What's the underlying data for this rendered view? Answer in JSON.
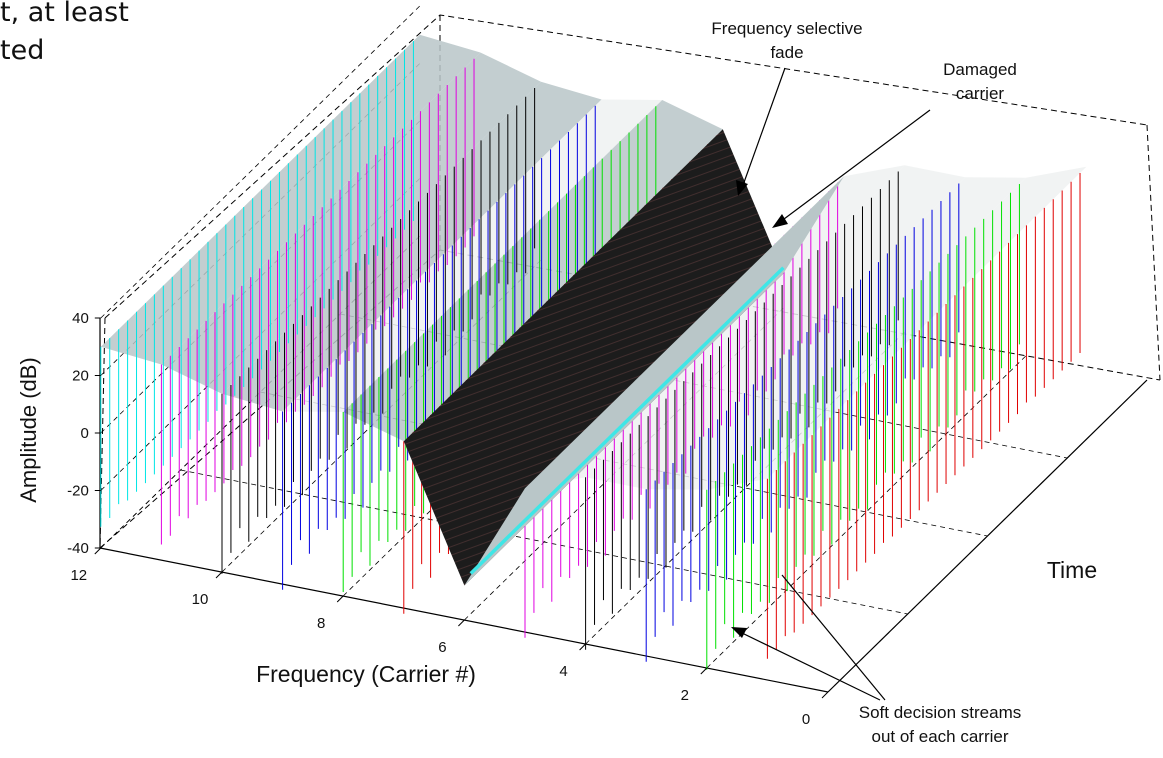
{
  "slide_caption": {
    "line1": "t, at least",
    "line2": "ted"
  },
  "chart_data": {
    "type": "3d-stem-surface",
    "title": "",
    "xlabel": "Frequency (Carrier #)",
    "ylabel": "Time",
    "zlabel": "Amplitude (dB)",
    "x_ticks": [
      0,
      2,
      4,
      6,
      8,
      10,
      12
    ],
    "z_ticks": [
      40,
      20,
      0,
      -20,
      -40
    ],
    "xlim": [
      0,
      12
    ],
    "zlim": [
      -40,
      40
    ],
    "grid": true,
    "carriers": [
      {
        "carrier": 12,
        "color": "#00e5e5",
        "amplitude_db": 30
      },
      {
        "carrier": 11,
        "color": "#e000e0",
        "amplitude_db": 28
      },
      {
        "carrier": 10,
        "color": "#000000",
        "amplitude_db": 22
      },
      {
        "carrier": 9,
        "color": "#0000e0",
        "amplitude_db": 20
      },
      {
        "carrier": 8,
        "color": "#00e000",
        "amplitude_db": 24
      },
      {
        "carrier": 7,
        "color": "#e00000",
        "amplitude_db": 18
      },
      {
        "carrier": 6,
        "color": "#000000",
        "amplitude_db": -30
      },
      {
        "carrier": 5,
        "color": "#e000e0",
        "amplitude_db": 10
      },
      {
        "carrier": 4,
        "color": "#000000",
        "amplitude_db": 18
      },
      {
        "carrier": 3,
        "color": "#0000e0",
        "amplitude_db": 18
      },
      {
        "carrier": 2,
        "color": "#00e000",
        "amplitude_db": 22
      },
      {
        "carrier": 1,
        "color": "#e00000",
        "amplitude_db": 30
      }
    ],
    "annotations": {
      "fade_line1": "Frequency selective",
      "fade_line2": "fade",
      "damaged_line1": "Damaged",
      "damaged_line2": "carrier",
      "soft_line1": "Soft decision streams",
      "soft_line2": "out of each carrier"
    },
    "colors": {
      "surface_light": "#eef1f1",
      "surface_shade": "#b9c6c8",
      "fade_dark": "#1c1c1c",
      "damaged_trace": "#3fe6e6"
    }
  }
}
